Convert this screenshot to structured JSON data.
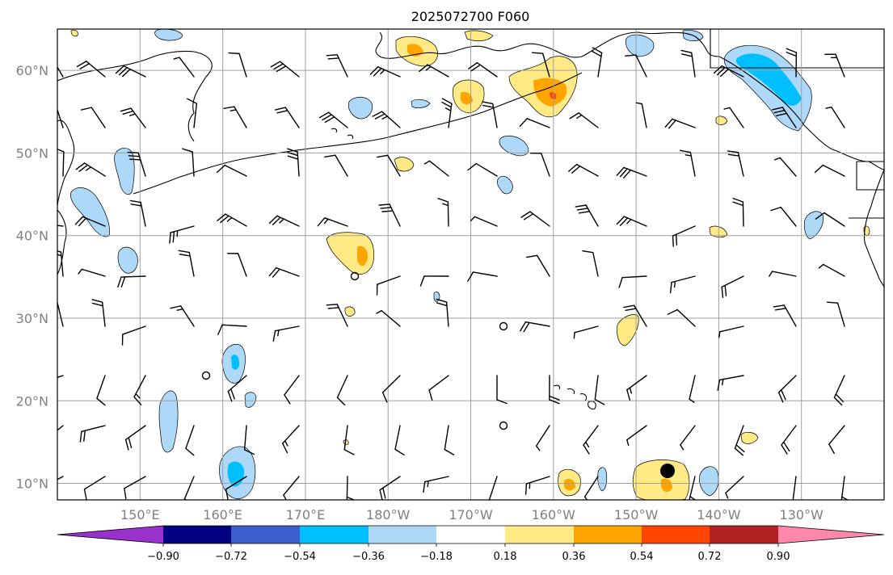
{
  "title": "2025072700 F060",
  "map": {
    "lat_range": [
      8,
      65
    ],
    "lon_range": [
      140,
      240
    ],
    "lat_ticks": [
      {
        "value": 10,
        "label": "10°N"
      },
      {
        "value": 20,
        "label": "20°N"
      },
      {
        "value": 30,
        "label": "30°N"
      },
      {
        "value": 40,
        "label": "40°N"
      },
      {
        "value": 50,
        "label": "50°N"
      },
      {
        "value": 60,
        "label": "60°N"
      }
    ],
    "lon_ticks": [
      {
        "value": 150,
        "label": "150°E"
      },
      {
        "value": 160,
        "label": "160°E"
      },
      {
        "value": 170,
        "label": "170°E"
      },
      {
        "value": 180,
        "label": "180°W"
      },
      {
        "value": 190,
        "label": "170°W"
      },
      {
        "value": 200,
        "label": "160°W"
      },
      {
        "value": 210,
        "label": "150°W"
      },
      {
        "value": 220,
        "label": "140°W"
      },
      {
        "value": 230,
        "label": "130°W"
      }
    ],
    "gridlines": true,
    "colors": {
      "light_blue": "#add8f8",
      "blue": "#00bfff",
      "yellow": "#ffea85",
      "orange": "#ffa500",
      "red_orange": "#ff4500",
      "wind": "#000000",
      "storm_marker": "#000000"
    }
  },
  "colorbar": {
    "colors": [
      "#9932cc",
      "#000080",
      "#3a5fcd",
      "#00bfff",
      "#add8f8",
      "#ffffff",
      "#ffea85",
      "#ffa500",
      "#ff4500",
      "#b22222",
      "#ff88aa"
    ],
    "ticks": [
      "−0.90",
      "−0.72",
      "−0.54",
      "−0.36",
      "−0.18",
      "0.18",
      "0.36",
      "0.54",
      "0.72",
      "0.90"
    ]
  }
}
